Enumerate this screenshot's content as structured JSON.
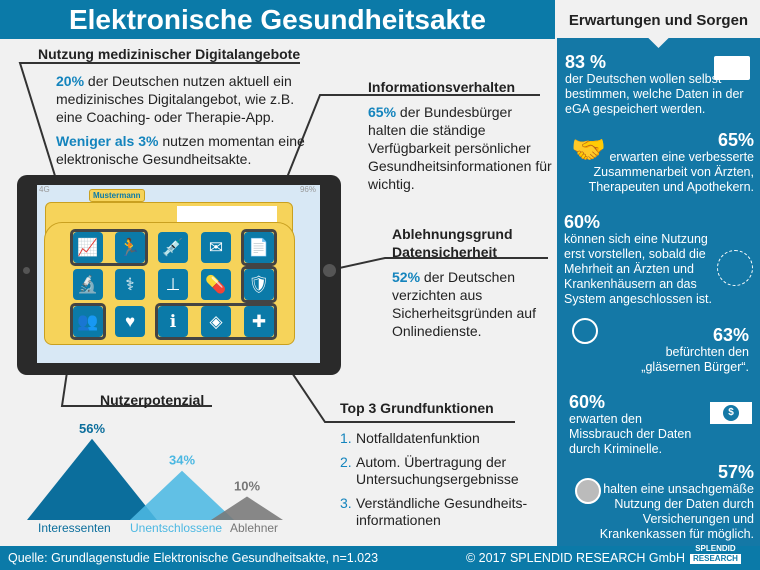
{
  "title": "Elektronische Gesundheitsakte",
  "nutzung": {
    "heading": "Nutzung medizinischer Digitalangebote",
    "p1_pct": "20%",
    "p1_text": " der Deutschen nutzen aktuell ein medizinisches Digitalangebot, wie z.B. eine Coaching- oder Therapie-App.",
    "p2_pct": "Weniger als 3%",
    "p2_text": " nutzen momentan eine elektronische Gesundheitsakte."
  },
  "info": {
    "heading": "Informationsverhalten",
    "pct": "65%",
    "text": " der Bundesbürger halten die ständige Verfügbarkeit persönlicher Gesundheitsinformationen für wichtig."
  },
  "ablehnung": {
    "heading1": "Ablehnungsgrund",
    "heading2": "Datensicherheit",
    "pct": "52%",
    "text": " der Deutschen verzichten aus Sicherheitsgründen auf Onlinedienste."
  },
  "tablet": {
    "status_left": "4G",
    "battery": "96%",
    "folder_tab": "Mustermann",
    "icons": [
      "chart-icon",
      "runner-icon",
      "syringe-icon",
      "mail-icon",
      "document-icon",
      "microscope-icon",
      "stethoscope-icon",
      "scale-icon",
      "pills-icon",
      "shield-icon",
      "people-icon",
      "heart-icon",
      "info-icon",
      "tag-icon",
      "plus-icon"
    ]
  },
  "nutzerpotenzial": {
    "heading": "Nutzerpotenzial",
    "items": [
      {
        "label": "Interessenten",
        "pct": "56%",
        "value": 56,
        "color": "#0b6e9c"
      },
      {
        "label": "Unentschlossene",
        "pct": "34%",
        "value": 34,
        "color": "#4cb8e2"
      },
      {
        "label": "Ablehner",
        "pct": "10%",
        "value": 10,
        "color": "#777777"
      }
    ]
  },
  "top3": {
    "heading": "Top 3 Grundfunktionen",
    "items": [
      {
        "n": "1.",
        "text": "Notfalldatenfunktion"
      },
      {
        "n": "2.",
        "text": "Autom. Übertragung der Untersuchungsergebnisse"
      },
      {
        "n": "3.",
        "text": "Verständliche Gesundheits-informationen"
      }
    ]
  },
  "sidebar": {
    "heading": "Erwartungen und Sorgen",
    "items": [
      {
        "pct": "83 %",
        "text": "der Deutschen wollen selbst bestimmen, welche Daten in der eGA gespeichert werden.",
        "icon": "card-icon"
      },
      {
        "pct": "65%",
        "text": "erwarten eine verbesserte Zusammenarbeit von Ärzten, Therapeuten und Apothekern.",
        "icon": "handshake-icon"
      },
      {
        "pct": "60%",
        "text": "können sich eine Nutzung erst vorstellen, sobald die Mehrheit an Ärzten und Krankenhäusern an das System angeschlossen ist.",
        "icon": "network-icon"
      },
      {
        "pct": "63%",
        "text": "befürchten den „gläsernen Bürger“.",
        "icon": "magnifier-person-icon"
      },
      {
        "pct": "60%",
        "text": "erwarten den Missbrauch der Daten durch Kriminelle.",
        "icon": "money-icon"
      },
      {
        "pct": "57%",
        "text": "halten eine unsachgemäße Nutzung der Daten durch Versicherungen und Krankenkassen für möglich.",
        "icon": "stethoscope-shield-icon"
      }
    ]
  },
  "footer": {
    "source": "Quelle: Grundlagenstudie Elektronische Gesundheitsakte, n=1.023",
    "copyright": "© 2017 SPLENDID RESEARCH GmbH",
    "logo1": "SPLENDID",
    "logo2": "RESEARCH"
  }
}
